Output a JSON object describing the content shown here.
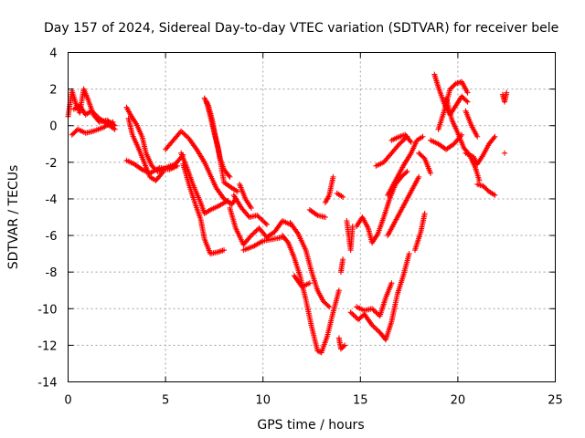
{
  "chart_data": {
    "type": "scatter",
    "title": "Day 157 of 2024, Sidereal Day-to-day VTEC variation (SDTVAR) for receiver bele",
    "xlabel": "GPS time / hours",
    "ylabel": "SDTVAR / TECUs",
    "xlim": [
      0,
      25
    ],
    "ylim": [
      -14,
      4
    ],
    "x_ticks": [
      0,
      5,
      10,
      15,
      20,
      25
    ],
    "y_ticks": [
      -14,
      -12,
      -10,
      -8,
      -6,
      -4,
      -2,
      0,
      2,
      4
    ],
    "grid": true,
    "marker": "plus",
    "marker_color": "#ff0000",
    "series": [
      {
        "segments": [
          [
            [
              0.0,
              0.5
            ],
            [
              0.2,
              1.9
            ],
            [
              0.4,
              1.2
            ],
            [
              0.6,
              0.7
            ],
            [
              0.8,
              2.0
            ],
            [
              1.0,
              1.5
            ],
            [
              1.3,
              0.6
            ],
            [
              1.6,
              0.2
            ],
            [
              2.0,
              0.3
            ],
            [
              2.4,
              0.0
            ]
          ],
          [
            [
              0.2,
              -0.5
            ],
            [
              0.5,
              -0.2
            ],
            [
              0.9,
              -0.4
            ],
            [
              1.3,
              -0.3
            ],
            [
              1.8,
              -0.1
            ],
            [
              2.3,
              0.2
            ]
          ],
          [
            [
              0.3,
              0.9
            ],
            [
              0.6,
              1.1
            ],
            [
              0.9,
              0.6
            ],
            [
              1.2,
              0.8
            ],
            [
              1.6,
              0.4
            ],
            [
              2.0,
              0.1
            ],
            [
              2.4,
              -0.2
            ]
          ],
          [
            [
              3.0,
              1.0
            ],
            [
              3.2,
              0.6
            ],
            [
              3.5,
              0.1
            ],
            [
              3.8,
              -0.6
            ],
            [
              4.0,
              -1.5
            ],
            [
              4.3,
              -2.2
            ],
            [
              4.6,
              -2.5
            ],
            [
              5.0,
              -2.3
            ],
            [
              5.5,
              -2.1
            ],
            [
              5.9,
              -1.6
            ]
          ],
          [
            [
              3.1,
              0.4
            ],
            [
              3.3,
              -0.5
            ],
            [
              3.6,
              -1.2
            ],
            [
              3.9,
              -2.0
            ],
            [
              4.2,
              -2.8
            ],
            [
              4.5,
              -3.0
            ],
            [
              4.9,
              -2.5
            ]
          ],
          [
            [
              3.0,
              -1.9
            ],
            [
              3.4,
              -2.1
            ],
            [
              3.8,
              -2.4
            ],
            [
              4.2,
              -2.6
            ],
            [
              4.7,
              -2.3
            ],
            [
              5.2,
              -2.4
            ],
            [
              5.6,
              -2.2
            ]
          ],
          [
            [
              5.0,
              -1.3
            ],
            [
              5.4,
              -0.8
            ],
            [
              5.8,
              -0.3
            ],
            [
              6.2,
              -0.7
            ],
            [
              6.6,
              -1.3
            ],
            [
              7.0,
              -2.0
            ],
            [
              7.3,
              -2.7
            ],
            [
              7.6,
              -3.4
            ],
            [
              8.0,
              -4.0
            ],
            [
              8.4,
              -4.3
            ],
            [
              8.6,
              -4.0
            ]
          ],
          [
            [
              5.8,
              -1.5
            ],
            [
              6.1,
              -2.3
            ],
            [
              6.4,
              -3.2
            ],
            [
              6.8,
              -4.2
            ],
            [
              7.0,
              -4.8
            ],
            [
              7.3,
              -4.6
            ],
            [
              7.7,
              -4.4
            ],
            [
              8.2,
              -4.1
            ]
          ],
          [
            [
              5.9,
              -2.1
            ],
            [
              6.2,
              -3.2
            ],
            [
              6.5,
              -4.2
            ],
            [
              6.8,
              -5.1
            ],
            [
              7.0,
              -6.2
            ],
            [
              7.3,
              -7.0
            ],
            [
              7.7,
              -6.9
            ],
            [
              8.0,
              -6.8
            ]
          ],
          [
            [
              7.0,
              1.5
            ],
            [
              7.2,
              1.1
            ],
            [
              7.4,
              0.3
            ],
            [
              7.6,
              -0.8
            ],
            [
              7.8,
              -1.8
            ],
            [
              8.0,
              -2.4
            ],
            [
              8.3,
              -2.8
            ]
          ],
          [
            [
              7.1,
              1.3
            ],
            [
              7.3,
              0.5
            ],
            [
              7.5,
              -0.4
            ],
            [
              7.7,
              -1.2
            ],
            [
              8.0,
              -3.1
            ],
            [
              8.4,
              -3.4
            ],
            [
              8.7,
              -3.6
            ]
          ],
          [
            [
              8.3,
              -4.5
            ],
            [
              8.6,
              -5.6
            ],
            [
              9.0,
              -6.5
            ],
            [
              9.4,
              -6.0
            ],
            [
              9.8,
              -5.6
            ],
            [
              10.2,
              -6.1
            ],
            [
              10.6,
              -5.8
            ],
            [
              11.0,
              -5.2
            ],
            [
              11.4,
              -5.4
            ]
          ],
          [
            [
              8.5,
              -3.8
            ],
            [
              8.9,
              -4.5
            ],
            [
              9.3,
              -5.0
            ],
            [
              9.7,
              -4.9
            ],
            [
              10.2,
              -5.4
            ]
          ],
          [
            [
              8.8,
              -3.2
            ],
            [
              9.1,
              -4.0
            ],
            [
              9.4,
              -4.5
            ]
          ],
          [
            [
              9.0,
              -6.8
            ],
            [
              9.5,
              -6.6
            ],
            [
              10.0,
              -6.3
            ],
            [
              10.5,
              -6.2
            ],
            [
              11.0,
              -6.1
            ]
          ],
          [
            [
              11.0,
              -6.0
            ],
            [
              11.3,
              -6.4
            ],
            [
              11.6,
              -7.2
            ],
            [
              11.9,
              -8.2
            ],
            [
              12.2,
              -9.5
            ],
            [
              12.5,
              -11.0
            ],
            [
              12.8,
              -12.3
            ],
            [
              13.0,
              -12.4
            ],
            [
              13.3,
              -11.5
            ],
            [
              13.6,
              -10.2
            ],
            [
              13.9,
              -9.0
            ]
          ],
          [
            [
              11.4,
              -5.3
            ],
            [
              11.8,
              -5.9
            ],
            [
              12.2,
              -6.8
            ],
            [
              12.5,
              -8.0
            ],
            [
              12.8,
              -9.0
            ],
            [
              13.1,
              -9.6
            ],
            [
              13.4,
              -9.9
            ]
          ],
          [
            [
              11.6,
              -8.2
            ],
            [
              12.0,
              -8.8
            ],
            [
              12.4,
              -8.6
            ]
          ],
          [
            [
              12.4,
              -4.6
            ],
            [
              12.8,
              -4.9
            ],
            [
              13.2,
              -5.0
            ]
          ],
          [
            [
              13.2,
              -4.2
            ],
            [
              13.4,
              -3.8
            ],
            [
              13.6,
              -2.8
            ]
          ],
          [
            [
              13.8,
              -3.7
            ],
            [
              14.1,
              -3.9
            ]
          ],
          [
            [
              13.9,
              -11.6
            ],
            [
              14.0,
              -12.2
            ],
            [
              14.2,
              -12.0
            ]
          ],
          [
            [
              14.0,
              -8.0
            ],
            [
              14.1,
              -7.3
            ]
          ],
          [
            [
              14.3,
              -5.2
            ],
            [
              14.5,
              -6.8
            ],
            [
              14.6,
              -5.5
            ]
          ],
          [
            [
              14.5,
              -10.2
            ],
            [
              14.9,
              -10.6
            ],
            [
              15.2,
              -10.3
            ],
            [
              15.6,
              -10.9
            ],
            [
              16.0,
              -11.3
            ],
            [
              16.3,
              -11.7
            ],
            [
              16.6,
              -10.7
            ],
            [
              16.9,
              -9.2
            ],
            [
              17.2,
              -8.2
            ],
            [
              17.5,
              -7.0
            ]
          ],
          [
            [
              14.8,
              -9.9
            ],
            [
              15.2,
              -10.1
            ],
            [
              15.6,
              -10.0
            ],
            [
              16.0,
              -10.4
            ],
            [
              16.3,
              -9.4
            ],
            [
              16.6,
              -8.6
            ]
          ],
          [
            [
              14.8,
              -5.5
            ],
            [
              15.1,
              -5.0
            ],
            [
              15.4,
              -5.6
            ],
            [
              15.6,
              -6.4
            ],
            [
              15.9,
              -5.9
            ],
            [
              16.2,
              -5.0
            ],
            [
              16.5,
              -4.0
            ],
            [
              16.8,
              -3.2
            ],
            [
              17.1,
              -2.8
            ],
            [
              17.4,
              -2.5
            ]
          ],
          [
            [
              15.8,
              -2.2
            ],
            [
              16.2,
              -2.0
            ],
            [
              16.6,
              -1.5
            ],
            [
              17.0,
              -1.0
            ],
            [
              17.4,
              -0.6
            ]
          ],
          [
            [
              16.4,
              -3.8
            ],
            [
              16.8,
              -3.0
            ],
            [
              17.2,
              -2.2
            ],
            [
              17.6,
              -1.5
            ],
            [
              17.9,
              -0.8
            ],
            [
              18.2,
              -0.6
            ]
          ],
          [
            [
              16.4,
              -6.0
            ],
            [
              16.8,
              -5.2
            ],
            [
              17.2,
              -4.4
            ],
            [
              17.6,
              -3.6
            ],
            [
              18.0,
              -2.8
            ]
          ],
          [
            [
              16.6,
              -0.8
            ],
            [
              17.0,
              -0.6
            ],
            [
              17.3,
              -0.5
            ],
            [
              17.6,
              -0.9
            ]
          ],
          [
            [
              17.8,
              -6.8
            ],
            [
              18.1,
              -5.8
            ],
            [
              18.3,
              -4.8
            ]
          ],
          [
            [
              18.0,
              -1.5
            ],
            [
              18.3,
              -1.8
            ],
            [
              18.6,
              -2.6
            ]
          ],
          [
            [
              18.6,
              -0.8
            ],
            [
              19.0,
              -1.0
            ],
            [
              19.4,
              -1.3
            ],
            [
              19.8,
              -1.0
            ],
            [
              20.2,
              -0.5
            ]
          ],
          [
            [
              18.8,
              2.8
            ],
            [
              19.0,
              2.1
            ],
            [
              19.3,
              1.2
            ],
            [
              19.6,
              0.6
            ],
            [
              19.9,
              1.1
            ],
            [
              20.2,
              1.6
            ],
            [
              20.5,
              1.3
            ]
          ],
          [
            [
              19.0,
              -0.2
            ],
            [
              19.3,
              0.8
            ],
            [
              19.6,
              2.0
            ],
            [
              19.9,
              2.3
            ],
            [
              20.2,
              2.4
            ],
            [
              20.5,
              1.8
            ]
          ],
          [
            [
              19.4,
              1.5
            ],
            [
              19.7,
              0.3
            ],
            [
              20.0,
              -0.4
            ],
            [
              20.3,
              -1.2
            ],
            [
              20.6,
              -1.6
            ],
            [
              20.9,
              -2.3
            ],
            [
              21.1,
              -3.0
            ]
          ],
          [
            [
              20.4,
              -1.5
            ],
            [
              20.8,
              -1.7
            ],
            [
              21.0,
              -2.1
            ],
            [
              21.3,
              -1.6
            ],
            [
              21.6,
              -1.0
            ],
            [
              21.9,
              -0.6
            ]
          ],
          [
            [
              21.0,
              -3.2
            ],
            [
              21.3,
              -3.3
            ],
            [
              21.6,
              -3.6
            ],
            [
              21.9,
              -3.8
            ]
          ],
          [
            [
              20.4,
              0.8
            ],
            [
              20.7,
              0.0
            ],
            [
              21.0,
              -0.6
            ]
          ],
          [
            [
              22.3,
              1.7
            ],
            [
              22.4,
              1.3
            ],
            [
              22.5,
              1.8
            ]
          ],
          [
            [
              22.4,
              -1.5
            ]
          ]
        ]
      }
    ]
  }
}
